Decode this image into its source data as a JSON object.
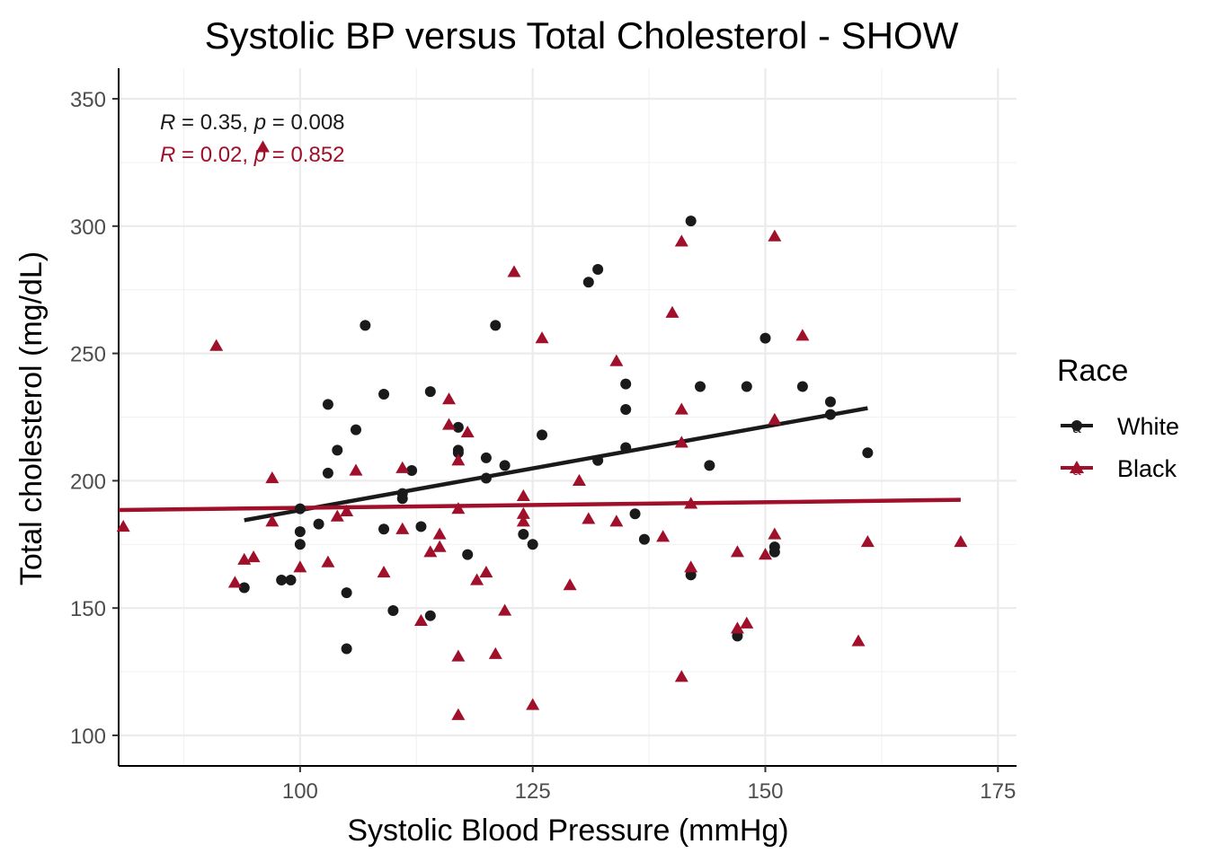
{
  "chart_data": {
    "type": "scatter",
    "title": "Systolic BP versus Total Cholesterol - SHOW",
    "xlabel": "Systolic Blood Pressure (mmHg)",
    "ylabel": "Total cholesterol (mg/dL)",
    "xlim": [
      80.5,
      177
    ],
    "ylim": [
      88,
      362
    ],
    "xticks": [
      100,
      125,
      150,
      175
    ],
    "yticks": [
      100,
      150,
      200,
      250,
      300,
      350
    ],
    "grid": true,
    "legend": {
      "title": "Race",
      "placement": "right",
      "items": [
        {
          "label": "White",
          "color": "#1a1a1a",
          "shape": "circle",
          "key_glyph": "a"
        },
        {
          "label": "Black",
          "color": "#a0102a",
          "shape": "triangle",
          "key_glyph": "a"
        }
      ]
    },
    "annotations": [
      {
        "R_label": "R",
        "R_value": " = 0.35, ",
        "p_label": "p",
        "p_value": " = 0.008",
        "color": "#1a1a1a"
      },
      {
        "R_label": "R",
        "R_value": " = 0.02, ",
        "p_label": "p",
        "p_value": " = 0.852",
        "color": "#a0102a"
      }
    ],
    "series": [
      {
        "name": "White",
        "color": "#1a1a1a",
        "marker": "circle",
        "fit_line": {
          "x": [
            94,
            161
          ],
          "y": [
            184.5,
            228.5
          ]
        },
        "points": [
          [
            94,
            158
          ],
          [
            98,
            161
          ],
          [
            99,
            161
          ],
          [
            100,
            175
          ],
          [
            100,
            180
          ],
          [
            100,
            189
          ],
          [
            102,
            183
          ],
          [
            103,
            203
          ],
          [
            103,
            230
          ],
          [
            104,
            212
          ],
          [
            105,
            134
          ],
          [
            105,
            156
          ],
          [
            106,
            220
          ],
          [
            107,
            261
          ],
          [
            109,
            181
          ],
          [
            109,
            234
          ],
          [
            110,
            149
          ],
          [
            111,
            193
          ],
          [
            111,
            195
          ],
          [
            112,
            204
          ],
          [
            113,
            182
          ],
          [
            114,
            147
          ],
          [
            114,
            235
          ],
          [
            117,
            211
          ],
          [
            117,
            212
          ],
          [
            117,
            221
          ],
          [
            118,
            171
          ],
          [
            120,
            209
          ],
          [
            120,
            201
          ],
          [
            121,
            261
          ],
          [
            122,
            206
          ],
          [
            124,
            179
          ],
          [
            125,
            175
          ],
          [
            126,
            218
          ],
          [
            131,
            278
          ],
          [
            132,
            208
          ],
          [
            132,
            283
          ],
          [
            135,
            228
          ],
          [
            135,
            238
          ],
          [
            135,
            213
          ],
          [
            136,
            187
          ],
          [
            137,
            177
          ],
          [
            142,
            302
          ],
          [
            142,
            163
          ],
          [
            143,
            237
          ],
          [
            144,
            206
          ],
          [
            147,
            139
          ],
          [
            148,
            237
          ],
          [
            150,
            256
          ],
          [
            151,
            174
          ],
          [
            151,
            172
          ],
          [
            154,
            237
          ],
          [
            157,
            226
          ],
          [
            157,
            231
          ],
          [
            161,
            211
          ]
        ]
      },
      {
        "name": "Black",
        "color": "#a0102a",
        "marker": "triangle",
        "fit_line": {
          "x": [
            80.5,
            171
          ],
          "y": [
            188.5,
            192.5
          ]
        },
        "points": [
          [
            81,
            182
          ],
          [
            91,
            253
          ],
          [
            93,
            160
          ],
          [
            94,
            169
          ],
          [
            95,
            170
          ],
          [
            96,
            331
          ],
          [
            97,
            184
          ],
          [
            97,
            201
          ],
          [
            100,
            166
          ],
          [
            103,
            168
          ],
          [
            104,
            186
          ],
          [
            105,
            188
          ],
          [
            106,
            204
          ],
          [
            109,
            164
          ],
          [
            111,
            205
          ],
          [
            111,
            181
          ],
          [
            113,
            145
          ],
          [
            114,
            172
          ],
          [
            115,
            174
          ],
          [
            115,
            179
          ],
          [
            116,
            222
          ],
          [
            116,
            232
          ],
          [
            117,
            208
          ],
          [
            117,
            189
          ],
          [
            117,
            131
          ],
          [
            117,
            108
          ],
          [
            118,
            219
          ],
          [
            119,
            161
          ],
          [
            120,
            164
          ],
          [
            121,
            132
          ],
          [
            122,
            149
          ],
          [
            123,
            282
          ],
          [
            124,
            194
          ],
          [
            124,
            187
          ],
          [
            124,
            184
          ],
          [
            125,
            112
          ],
          [
            126,
            256
          ],
          [
            129,
            159
          ],
          [
            130,
            200
          ],
          [
            131,
            185
          ],
          [
            134,
            247
          ],
          [
            134,
            184
          ],
          [
            139,
            178
          ],
          [
            140,
            266
          ],
          [
            141,
            294
          ],
          [
            141,
            228
          ],
          [
            141,
            215
          ],
          [
            141,
            123
          ],
          [
            142,
            191
          ],
          [
            142,
            166
          ],
          [
            147,
            172
          ],
          [
            147,
            142
          ],
          [
            148,
            144
          ],
          [
            150,
            171
          ],
          [
            151,
            296
          ],
          [
            151,
            224
          ],
          [
            151,
            179
          ],
          [
            154,
            257
          ],
          [
            160,
            137
          ],
          [
            161,
            176
          ],
          [
            171,
            176
          ]
        ]
      }
    ]
  }
}
